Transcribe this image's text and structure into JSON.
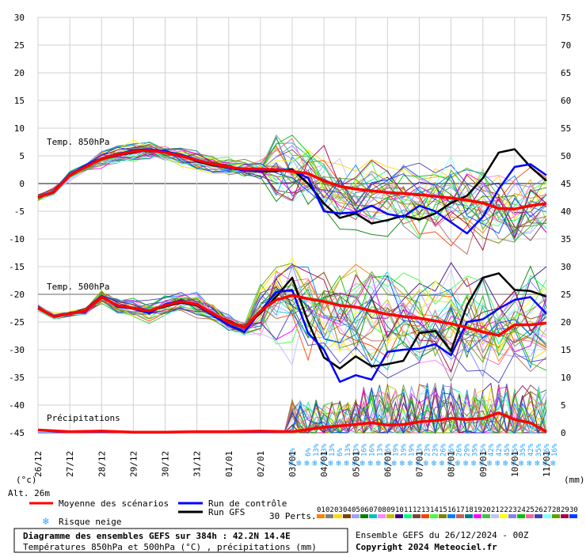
{
  "chart_data": {
    "type": "line",
    "left_axis": {
      "min": -45,
      "max": 30,
      "ticks": [
        30,
        25,
        20,
        15,
        10,
        5,
        0,
        -5,
        -10,
        -15,
        -20,
        -25,
        -30,
        -35,
        -40,
        -45
      ],
      "unit_label": "(°c)"
    },
    "right_axis": {
      "min": 0,
      "max": 75,
      "ticks": [
        75,
        70,
        65,
        60,
        55,
        50,
        45,
        40,
        35,
        30,
        25,
        20,
        15,
        10,
        5,
        0
      ],
      "unit_label": "(mm)"
    },
    "dates": [
      "26/12",
      "27/12",
      "28/12",
      "29/12",
      "30/12",
      "31/12",
      "01/01",
      "02/01",
      "03/01",
      "04/01",
      "05/01",
      "06/01",
      "07/01",
      "08/01",
      "09/01",
      "10/01",
      "11/01"
    ],
    "panel_labels": {
      "t850": "Temp. 850hPa",
      "t500": "Temp. 500hPa",
      "precip": "Précipitations"
    },
    "altitude": "Alt. 26m",
    "t850": {
      "x_days": [
        0,
        0.5,
        1,
        1.5,
        2,
        2.5,
        3,
        3.5,
        4,
        4.5,
        5,
        5.5,
        6,
        6.5,
        7,
        7.5,
        8,
        8.5,
        9,
        9.5,
        10,
        10.5,
        11,
        11.5,
        12,
        12.5,
        13,
        13.5,
        14,
        14.5,
        15,
        15.5,
        16
      ],
      "mean": [
        -2.5,
        -1.5,
        1.5,
        3,
        4.5,
        5.2,
        5.8,
        6,
        5.6,
        5,
        4.2,
        3.5,
        3,
        2.6,
        2.6,
        2.5,
        2.2,
        1.8,
        0.5,
        -0.5,
        -1,
        -1.3,
        -1.6,
        -1.8,
        -2,
        -2.3,
        -2.6,
        -3,
        -3.5,
        -4.5,
        -4.6,
        -4,
        -3.6
      ],
      "control": [
        -2.5,
        -1.5,
        1.6,
        3.2,
        4.6,
        5.3,
        6,
        6.2,
        5.8,
        5.2,
        4.3,
        3.4,
        2.8,
        2.4,
        2.2,
        2.6,
        2.4,
        1,
        -5,
        -5.4,
        -5.2,
        -4,
        -5.5,
        -6,
        -4,
        -5,
        -7,
        -9,
        -6,
        -1,
        3,
        3.5,
        1.5
      ],
      "gfs": [
        -2.5,
        -1.6,
        1.4,
        3,
        4.4,
        5.1,
        5.6,
        6.1,
        5.7,
        5.1,
        4,
        3.3,
        2.9,
        2.6,
        2.2,
        2.2,
        2.6,
        0,
        -3.6,
        -6.2,
        -5.4,
        -7.2,
        -6.6,
        -5.8,
        -6.5,
        -5.4,
        -3.5,
        -2.2,
        1,
        5.6,
        6.2,
        3,
        0.5
      ]
    },
    "t500": {
      "x_days": [
        0,
        0.5,
        1,
        1.5,
        2,
        2.5,
        3,
        3.5,
        4,
        4.5,
        5,
        5.5,
        6,
        6.5,
        7,
        7.5,
        8,
        8.5,
        9,
        9.5,
        10,
        10.5,
        11,
        11.5,
        12,
        12.5,
        13,
        13.5,
        14,
        14.5,
        15,
        15.5,
        16
      ],
      "mean": [
        -22.5,
        -24,
        -23.5,
        -23,
        -20.5,
        -22,
        -22.5,
        -23,
        -22,
        -21.3,
        -21.8,
        -23.5,
        -25,
        -26,
        -23,
        -21,
        -20.2,
        -20.8,
        -21.3,
        -22,
        -22.3,
        -23,
        -23.6,
        -24,
        -24.3,
        -24.8,
        -25.3,
        -26,
        -26.8,
        -27.4,
        -25.5,
        -25.5,
        -25.2
      ],
      "control": [
        -22.5,
        -24,
        -23.4,
        -23.2,
        -20.4,
        -22.2,
        -22.6,
        -23.4,
        -21.8,
        -21.1,
        -22,
        -23.8,
        -25.6,
        -26.8,
        -23,
        -19.6,
        -19.2,
        -27,
        -30,
        -35.8,
        -34.6,
        -35.4,
        -30.4,
        -30,
        -29.8,
        -29,
        -31,
        -25,
        -24.5,
        -22.6,
        -21,
        -20.5,
        -23.5
      ],
      "gfs": [
        -22.5,
        -24,
        -23.4,
        -23,
        -20.5,
        -22.1,
        -22.4,
        -23,
        -22.2,
        -21.5,
        -22,
        -23.6,
        -24.8,
        -26,
        -23.4,
        -20.4,
        -17,
        -25,
        -31.4,
        -33.4,
        -31.2,
        -33,
        -32.6,
        -32,
        -27,
        -26.6,
        -30.2,
        -22,
        -17,
        -16.2,
        -19.2,
        -19.4,
        -20.4
      ]
    },
    "precip": {
      "x_days": [
        0,
        1,
        2,
        3,
        4,
        5,
        6,
        7,
        8,
        9,
        10,
        10.5,
        11,
        11.5,
        12,
        12.5,
        13,
        13.5,
        14,
        14.5,
        15,
        15.5,
        16
      ],
      "mean_mm": [
        0.5,
        0.2,
        0.3,
        0.1,
        0.1,
        0.2,
        0.2,
        0.3,
        0.2,
        1,
        1.5,
        1.8,
        1.4,
        1.5,
        2,
        2.2,
        2.6,
        2.4,
        2.6,
        3.6,
        2.4,
        1.8,
        0.2
      ]
    },
    "snow_risk": {
      "day_start": 8,
      "day_step": 0.25,
      "pct": [
        "6%",
        "",
        "6%",
        "13%",
        "13%",
        "13%",
        "6%",
        "13%",
        "13%",
        "16%",
        "16%",
        "13%",
        "16%",
        "19%",
        "19%",
        "19%",
        "23%",
        "23%",
        "23%",
        "26%",
        "26%",
        "26%",
        "29%",
        "35%",
        "35%",
        "42%",
        "42%",
        "45%",
        "45%",
        "35%",
        "42%",
        "35%",
        "26%",
        "16%"
      ]
    },
    "legend": {
      "mean": "Moyenne des scénarios",
      "control": "Run de contrôle",
      "gfs": "Run GFS",
      "snow": "Risque neige",
      "perts": "30 Perts.",
      "colors": {
        "mean": "#ff0000",
        "control": "#0000ff",
        "gfs": "#000000"
      }
    },
    "members": [
      "01",
      "02",
      "03",
      "04",
      "05",
      "06",
      "07",
      "08",
      "09",
      "10",
      "11",
      "12",
      "13",
      "14",
      "15",
      "16",
      "17",
      "18",
      "19",
      "20",
      "21",
      "22",
      "23",
      "24",
      "25",
      "26",
      "27",
      "28",
      "29",
      "30"
    ],
    "member_colors": [
      "#ff8000",
      "#808080",
      "#ffd700",
      "#804000",
      "#a0a0ff",
      "#008000",
      "#00c0c0",
      "#ff80ff",
      "#c0c000",
      "#400080",
      "#00ff80",
      "#804040",
      "#ff4000",
      "#40ff40",
      "#808000",
      "#0080ff",
      "#c06060",
      "#008080",
      "#ff00ff",
      "#40c040",
      "#c0c0ff",
      "#ffff00",
      "#8080ff",
      "#00c000",
      "#ff60a0",
      "#4040c0",
      "#80ffff",
      "#60a000",
      "#a00040",
      "#0040ff"
    ]
  },
  "footer": {
    "title": "Diagramme des ensembles GEFS sur 384h : 42.2N 14.4E",
    "subtitle": "Températures 850hPa et 500hPa (°C) , précipitations (mm)",
    "run": "Ensemble GEFS du 26/12/2024 - 00Z",
    "copyright": "Copyright 2024 Meteociel.fr"
  }
}
